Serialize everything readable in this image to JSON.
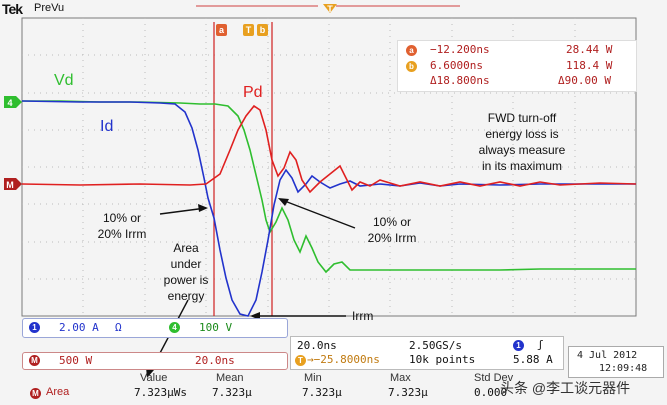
{
  "scope": {
    "logo": "Tek",
    "mode": "PreVu"
  },
  "cursor_labels": {
    "a": "a",
    "b": "b"
  },
  "trigger_marker": "T",
  "channel_markers": {
    "ch1": "1",
    "ch4": "4",
    "math": "M"
  },
  "traces": {
    "vd_label": "Vd",
    "id_label": "Id",
    "pd_label": "Pd",
    "colors": {
      "vd": "#2fbe2f",
      "id": "#2233cc",
      "pd": "#e02020",
      "cursor": "#d02020",
      "accent_orange": "#e8a020"
    }
  },
  "measurements": {
    "row_a": {
      "marker": "a",
      "time": "−12.200ns",
      "value": "28.44 W"
    },
    "row_b": {
      "marker": "b",
      "time": "6.6000ns",
      "value": "118.4 W"
    },
    "row_delta": {
      "time": "Δ18.800ns",
      "value": "Δ90.00 W"
    }
  },
  "annotations": {
    "fwd_note": [
      "FWD turn-off",
      "energy loss is",
      "always measure",
      "in its maximum"
    ],
    "left_irrm": [
      "10% or",
      "20% Irrm"
    ],
    "right_irrm": [
      "10% or",
      "20% Irrm"
    ],
    "area_note": [
      "Area",
      "under",
      "power is",
      "energy"
    ],
    "irrm": "Irrm"
  },
  "status": {
    "ch1_scale": "2.00 A",
    "ch1_suffix": "Ω",
    "ch4_scale": "100 V",
    "math_scale": "500 W",
    "math_time": "20.0ns",
    "timebase": "20.0ns",
    "sample_rate": "2.50GS/s",
    "trigger_pos": "→−25.8000ns",
    "record": "10k points",
    "trigger_level": "5.88 A",
    "trigger_icon": "ʃ",
    "ch1_icon_label": "1",
    "ch4_icon_label": "4",
    "math_icon_label": "M",
    "trig_icon_label": "1",
    "trig_pos_icon": "T"
  },
  "date": {
    "day": "4 Jul  2012",
    "time": "12:09:48"
  },
  "area_meas": {
    "icon_label": "M",
    "name": "Area",
    "headers": [
      "Value",
      "Mean",
      "Min",
      "Max",
      "Std Dev"
    ],
    "values": [
      "7.323μWs",
      "7.323μ",
      "7.323μ",
      "7.323μ",
      "0.000"
    ]
  },
  "watermark": "头条 @李工谈元器件"
}
